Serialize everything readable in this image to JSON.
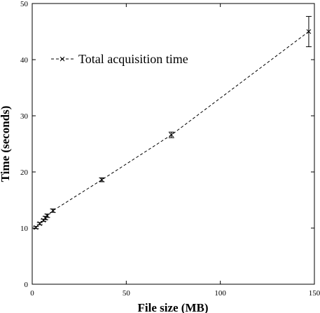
{
  "chart_data": {
    "type": "line",
    "title": "",
    "xlabel": "File size (MB)",
    "ylabel": "Time (seconds)",
    "xlim": [
      0,
      150
    ],
    "ylim": [
      0,
      50
    ],
    "xticks": [
      0,
      50,
      100,
      150
    ],
    "yticks": [
      0,
      10,
      20,
      30,
      40,
      50
    ],
    "grid": false,
    "legend_position": "top-left",
    "series": [
      {
        "name": "Total acquisition time",
        "line_style": "dashed",
        "marker": "x",
        "color": "#000000",
        "x": [
          2,
          4,
          6,
          7,
          8,
          11,
          37,
          74,
          147
        ],
        "y": [
          10.1,
          10.8,
          11.4,
          11.8,
          12.2,
          13.1,
          18.6,
          26.6,
          45.0
        ],
        "error": [
          0.2,
          0.2,
          0.2,
          0.3,
          0.3,
          0.3,
          0.35,
          0.5,
          2.7
        ]
      }
    ]
  }
}
